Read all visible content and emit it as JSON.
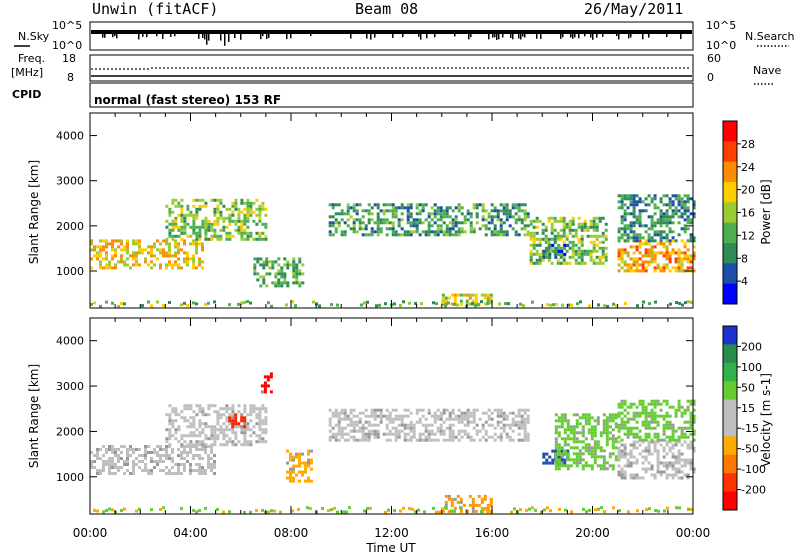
{
  "header": {
    "station": "Unwin (fitACF)",
    "beam": "Beam 08",
    "date": "26/May/2011"
  },
  "top_panel": {
    "left_label_nsky": "N.Sky",
    "left_ticks": [
      "10^5",
      "10^0"
    ],
    "right_ticks": [
      "10^5",
      "10^0"
    ],
    "right_label": "N.Search",
    "freq_label": "Freq.",
    "freq_unit": "[MHz]",
    "freq_ticks": [
      "18",
      "8"
    ],
    "nave_ticks": [
      "60",
      "0"
    ],
    "nave_label": "Nave",
    "cpid_label": "CPID",
    "cpid_text": "normal (fast stereo) 153 RF"
  },
  "chart_data": [
    {
      "type": "heatmap",
      "name": "power",
      "ylabel": "Slant Range [km]",
      "ylim": [
        180,
        4500
      ],
      "yticks": [
        "4000",
        "3000",
        "2000",
        "1000"
      ],
      "colorbar_label": "Power [dB]",
      "colorbar_ticks": [
        "28",
        "24",
        "20",
        "16",
        "12",
        "8",
        "4"
      ],
      "colorbar_colors": [
        "#ff0000",
        "#ff4000",
        "#ff8c00",
        "#ffcc00",
        "#99cc33",
        "#4caf50",
        "#2e8b57",
        "#1e4fa8",
        "#0000ff"
      ],
      "clim": [
        0,
        32
      ],
      "echo_bands": [
        {
          "t": [
            0,
            4.5
          ],
          "range": [
            1100,
            1700
          ],
          "level": 20
        },
        {
          "t": [
            3,
            7
          ],
          "range": [
            1700,
            2600
          ],
          "level": 14
        },
        {
          "t": [
            6.5,
            8.5
          ],
          "range": [
            700,
            1300
          ],
          "level": 12
        },
        {
          "t": [
            9.5,
            17.5
          ],
          "range": [
            1800,
            2500
          ],
          "level": 10
        },
        {
          "t": [
            14,
            16
          ],
          "range": [
            300,
            500
          ],
          "level": 18
        },
        {
          "t": [
            17.5,
            20.5
          ],
          "range": [
            1200,
            2200
          ],
          "level": 14
        },
        {
          "t": [
            18,
            19
          ],
          "range": [
            1300,
            1600
          ],
          "level": 6
        },
        {
          "t": [
            21,
            24
          ],
          "range": [
            1000,
            1700
          ],
          "level": 22
        },
        {
          "t": [
            21,
            24
          ],
          "range": [
            1700,
            2700
          ],
          "level": 8
        }
      ]
    },
    {
      "type": "heatmap",
      "name": "velocity",
      "ylabel": "Slant Range [km]",
      "ylim": [
        180,
        4500
      ],
      "yticks": [
        "4000",
        "3000",
        "2000",
        "1000"
      ],
      "colorbar_label": "Velocity [m s-1]",
      "colorbar_ticks": [
        "200",
        "100",
        "50",
        "15",
        "-15",
        "-50",
        "-100",
        "-200"
      ],
      "colorbar_colors": [
        "#1a33cc",
        "#2a8c4a",
        "#33b24c",
        "#66cc33",
        "#bfbfbf",
        "#bfbfbf",
        "#ffaa00",
        "#ff7700",
        "#ff3300",
        "#ff0000"
      ],
      "echo_bands": [
        {
          "t": [
            0,
            5
          ],
          "range": [
            1100,
            1700
          ],
          "color": "#bfbfbf"
        },
        {
          "t": [
            3,
            7
          ],
          "range": [
            1700,
            2600
          ],
          "color": "#bfbfbf"
        },
        {
          "t": [
            5.5,
            6.2
          ],
          "range": [
            2100,
            2400
          ],
          "color": "#ff2200"
        },
        {
          "t": [
            6.8,
            7.2
          ],
          "range": [
            2900,
            3300
          ],
          "color": "#ff0000"
        },
        {
          "t": [
            7.8,
            8.8
          ],
          "range": [
            900,
            1600
          ],
          "color": "#ffaa00"
        },
        {
          "t": [
            9.5,
            17.5
          ],
          "range": [
            1800,
            2500
          ],
          "color": "#bfbfbf"
        },
        {
          "t": [
            14,
            16
          ],
          "range": [
            250,
            600
          ],
          "color": "#ff9900"
        },
        {
          "t": [
            18,
            19
          ],
          "range": [
            1300,
            1600
          ],
          "color": "#1e4fa8"
        },
        {
          "t": [
            18.5,
            21
          ],
          "range": [
            1200,
            2400
          ],
          "color": "#66cc33"
        },
        {
          "t": [
            21,
            24
          ],
          "range": [
            1000,
            1800
          ],
          "color": "#bfbfbf"
        },
        {
          "t": [
            21,
            24
          ],
          "range": [
            1800,
            2700
          ],
          "color": "#66cc33"
        }
      ]
    }
  ],
  "xaxis": {
    "label": "Time UT",
    "ticks": [
      "00:00",
      "04:00",
      "08:00",
      "12:00",
      "16:00",
      "20:00",
      "00:00"
    ],
    "range_hours": [
      0,
      24
    ]
  }
}
